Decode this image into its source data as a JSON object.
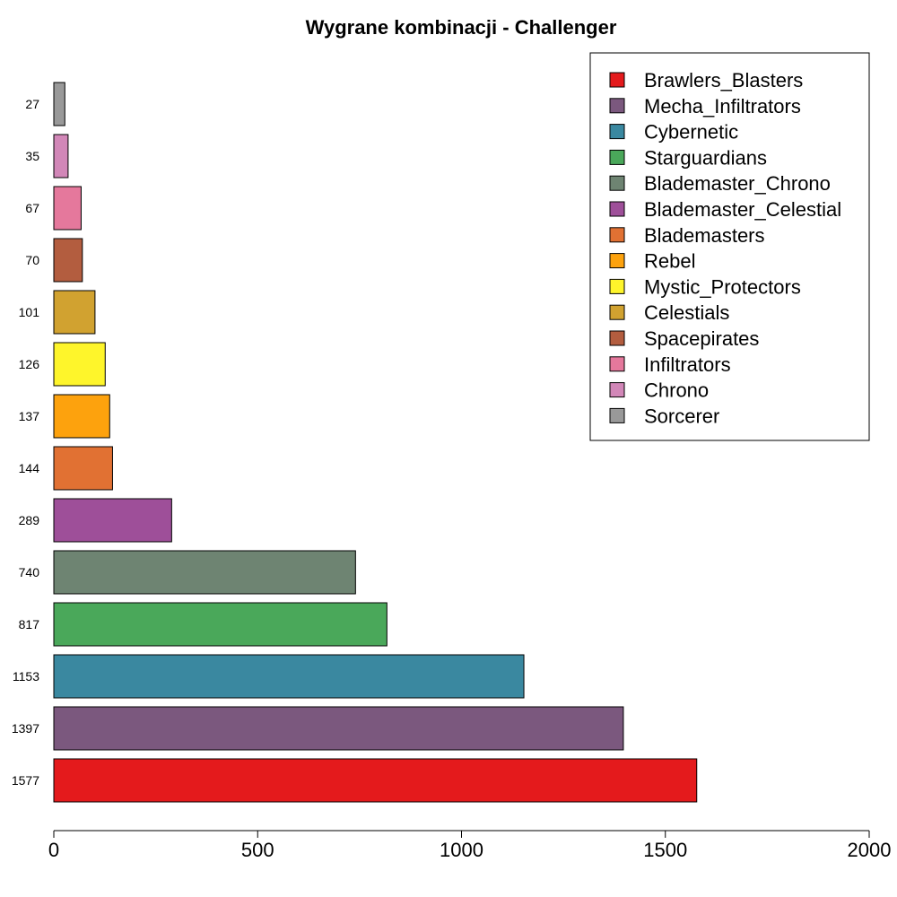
{
  "chart_data": {
    "type": "bar",
    "orientation": "horizontal",
    "title": "Wygrane kombinacji - Challenger",
    "xlabel": "",
    "ylabel": "",
    "xlim": [
      0,
      2000
    ],
    "x_ticks": [
      0,
      500,
      1000,
      1500,
      2000
    ],
    "grid": false,
    "legend_position": "top-right",
    "categories": [
      "Brawlers_Blasters",
      "Mecha_Infiltrators",
      "Cybernetic",
      "Starguardians",
      "Blademaster_Chrono",
      "Blademaster_Celestial",
      "Blademasters",
      "Rebel",
      "Mystic_Protectors",
      "Celestials",
      "Spacepirates",
      "Infiltrators",
      "Chrono",
      "Sorcerer"
    ],
    "values": [
      1577,
      1397,
      1153,
      817,
      740,
      289,
      144,
      137,
      126,
      101,
      70,
      67,
      35,
      27
    ],
    "bar_labels": [
      "1577",
      "1397",
      "1153",
      "817",
      "740",
      "289",
      "144",
      "137",
      "126",
      "101",
      "70",
      "67",
      "35",
      "27"
    ],
    "colors": [
      "#e41a1c",
      "#7b587e",
      "#3a88a0",
      "#4aa85a",
      "#6e8472",
      "#9e4f99",
      "#e17133",
      "#fda20d",
      "#fef52b",
      "#d1a230",
      "#b35d3f",
      "#e5789c",
      "#d287b8",
      "#999999"
    ]
  }
}
